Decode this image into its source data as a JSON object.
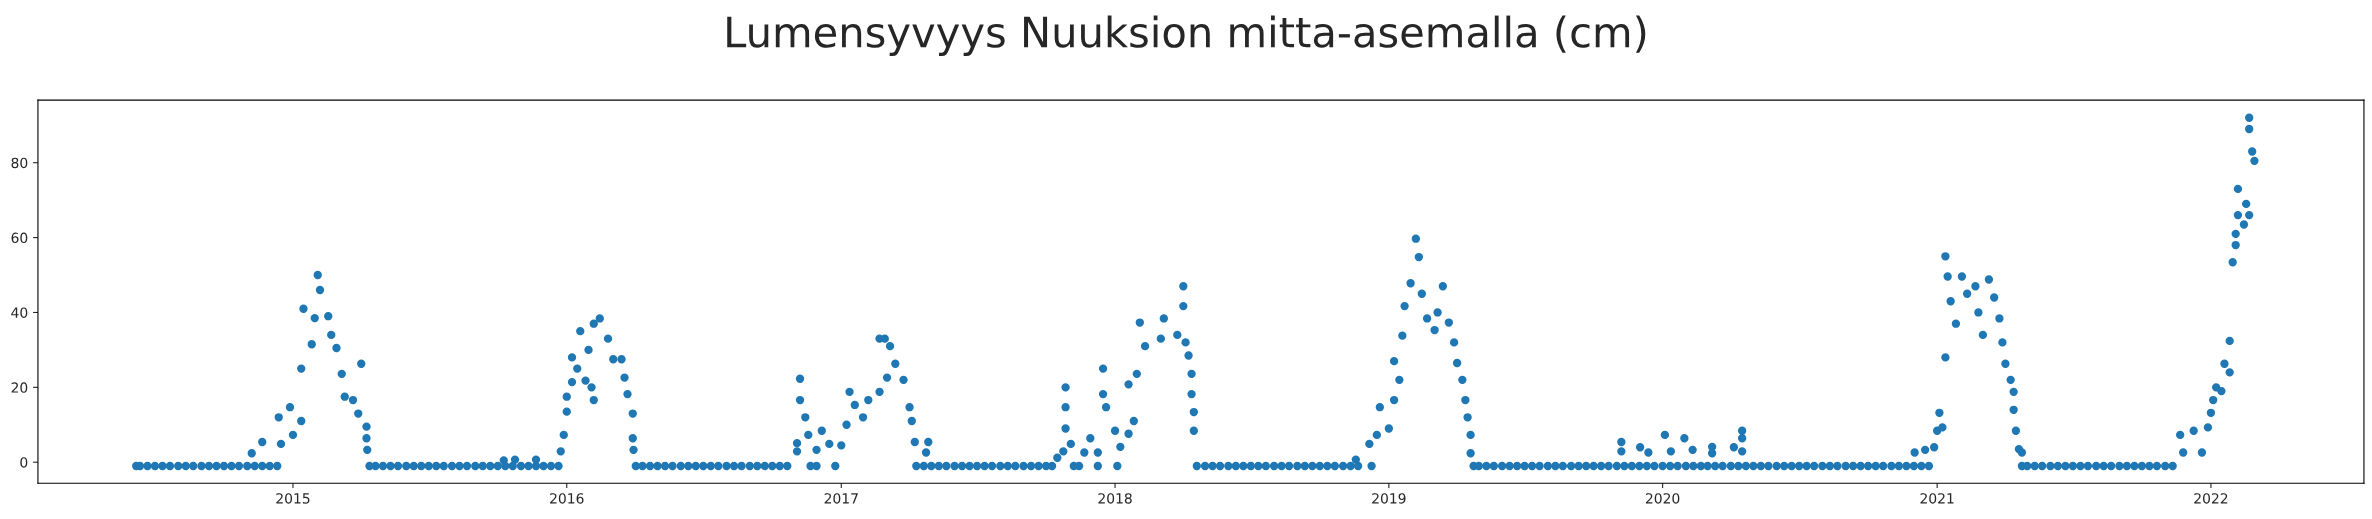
{
  "chart_data": {
    "type": "scatter",
    "title": "Lumensyvyys Nuuksion mitta-asemalla (cm)",
    "xlim": [
      "2014-01-26",
      "2022-07-24"
    ],
    "xticks": [
      "2015",
      "2016",
      "2017",
      "2018",
      "2019",
      "2020",
      "2021",
      "2022"
    ],
    "ylim": [
      -5.6,
      96.7
    ],
    "yticks": [
      0,
      20,
      40,
      60,
      80
    ],
    "grid": false,
    "marker": "circle",
    "series": [
      {
        "color": "#1f77b4",
        "x": [
          "2014-11-07",
          "2014-11-21",
          "2014-12-13",
          "2014-12-16",
          "2014-12-28",
          "2015-01-01",
          "2015-01-12",
          "2015-01-12",
          "2015-01-15",
          "2015-01-26",
          "2015-01-30",
          "2015-02-03",
          "2015-02-06",
          "2015-02-17",
          "2015-02-21",
          "2015-02-28",
          "2015-03-07",
          "2015-03-11",
          "2015-03-22",
          "2015-03-29",
          "2015-04-02",
          "2015-04-09",
          "2015-04-09",
          "2015-04-10",
          "2015-10-09",
          "2015-10-24",
          "2015-11-21",
          "2015-12-24",
          "2015-12-28",
          "2016-01-01",
          "2016-01-01",
          "2016-01-08",
          "2016-01-08",
          "2016-01-19",
          "2016-01-15",
          "2016-01-26",
          "2016-02-03",
          "2016-02-06",
          "2016-01-30",
          "2016-02-06",
          "2016-02-14",
          "2016-02-25",
          "2016-03-03",
          "2016-03-14",
          "2016-03-18",
          "2016-03-22",
          "2016-03-29",
          "2016-03-29",
          "2016-03-30",
          "2016-11-03",
          "2016-11-03",
          "2016-11-07",
          "2016-11-07",
          "2016-11-14",
          "2016-11-18",
          "2016-11-29",
          "2016-12-06",
          "2016-12-16",
          "2017-01-01",
          "2017-01-08",
          "2017-01-12",
          "2017-01-19",
          "2017-01-30",
          "2017-02-06",
          "2017-02-21",
          "2017-02-21",
          "2017-02-28",
          "2017-03-03",
          "2017-03-07",
          "2017-03-14",
          "2017-03-25",
          "2017-04-02",
          "2017-04-05",
          "2017-04-09",
          "2017-04-24",
          "2017-04-27",
          "2017-10-16",
          "2017-10-24",
          "2017-10-27",
          "2017-10-27",
          "2017-10-27",
          "2017-11-03",
          "2017-11-21",
          "2017-11-29",
          "2017-12-09",
          "2017-12-16",
          "2017-12-16",
          "2017-12-20",
          "2018-01-01",
          "2018-01-08",
          "2018-01-19",
          "2018-01-19",
          "2018-01-26",
          "2018-01-30",
          "2018-02-03",
          "2018-02-10",
          "2018-03-07",
          "2018-03-03",
          "2018-03-25",
          "2018-04-02",
          "2018-04-02",
          "2018-04-05",
          "2018-04-09",
          "2018-04-13",
          "2018-04-13",
          "2018-04-16",
          "2018-04-16",
          "2018-11-18",
          "2018-12-06",
          "2018-12-16",
          "2018-12-20",
          "2019-01-01",
          "2019-01-08",
          "2019-01-08",
          "2019-01-15",
          "2019-01-19",
          "2019-01-22",
          "2019-01-30",
          "2019-02-06",
          "2019-02-10",
          "2019-02-14",
          "2019-02-21",
          "2019-03-03",
          "2019-03-07",
          "2019-03-14",
          "2019-03-22",
          "2019-03-29",
          "2019-04-02",
          "2019-04-09",
          "2019-04-13",
          "2019-04-16",
          "2019-04-20",
          "2019-04-20",
          "2019-11-07",
          "2019-11-07",
          "2019-12-02",
          "2019-12-13",
          "2020-01-04",
          "2020-01-12",
          "2020-01-30",
          "2020-02-10",
          "2020-03-07",
          "2020-03-07",
          "2020-04-05",
          "2020-04-16",
          "2020-04-16",
          "2020-04-16",
          "2020-12-02",
          "2020-12-16",
          "2020-12-28",
          "2021-01-01",
          "2021-01-04",
          "2021-01-08",
          "2021-01-12",
          "2021-01-12",
          "2021-01-15",
          "2021-01-19",
          "2021-01-26",
          "2021-02-03",
          "2021-02-10",
          "2021-02-21",
          "2021-02-25",
          "2021-03-03",
          "2021-03-11",
          "2021-03-18",
          "2021-03-25",
          "2021-03-29",
          "2021-04-02",
          "2021-04-09",
          "2021-04-13",
          "2021-04-13",
          "2021-04-16",
          "2021-04-20",
          "2021-04-24",
          "2021-11-21",
          "2021-11-25",
          "2021-12-09",
          "2021-12-20",
          "2021-12-28",
          "2022-01-01",
          "2022-01-04",
          "2022-01-08",
          "2022-01-15",
          "2022-01-19",
          "2022-01-26",
          "2022-01-26",
          "2022-01-30",
          "2022-02-03",
          "2022-02-03",
          "2022-02-06",
          "2022-02-06",
          "2022-02-14",
          "2022-02-17",
          "2022-02-21",
          "2022-02-21",
          "2022-02-21",
          "2022-02-25",
          "2022-02-28"
        ],
        "values": [
          2.4,
          5.4,
          12,
          4.9,
          14.7,
          7.3,
          11,
          25,
          41,
          31.5,
          38.5,
          50,
          46,
          39,
          34,
          30.5,
          23.6,
          17.5,
          16.6,
          13,
          26.3,
          9.5,
          6.4,
          3.3,
          0.5,
          0.7,
          0.7,
          2.9,
          7.3,
          13.5,
          17.5,
          21.4,
          28,
          35,
          25,
          21.8,
          20,
          16.6,
          30,
          37,
          38.4,
          33,
          27.5,
          27.5,
          22.6,
          18.2,
          13,
          6.4,
          3.3,
          2.9,
          5.1,
          22.3,
          16.6,
          12,
          7.3,
          3.3,
          8.4,
          4.9,
          4.5,
          10,
          18.8,
          15.3,
          12,
          16.6,
          18.8,
          33,
          33,
          22.6,
          31,
          26.3,
          22,
          14.7,
          11,
          5.4,
          2.6,
          5.4,
          1.2,
          2.9,
          20,
          14.7,
          9,
          4.9,
          2.6,
          6.4,
          2.6,
          25,
          18.2,
          14.7,
          8.4,
          4.1,
          7.6,
          20.8,
          11,
          23.6,
          37.3,
          31,
          38.4,
          33,
          34,
          47,
          41.7,
          32,
          28.5,
          23.6,
          18.2,
          13.4,
          8.4,
          0.7,
          4.9,
          7.3,
          14.7,
          9,
          16.6,
          27,
          22,
          33.8,
          41.7,
          47.8,
          59.7,
          54.8,
          45,
          38.4,
          35.3,
          40,
          47,
          37.3,
          32,
          26.5,
          22,
          16.6,
          12,
          7.3,
          2.4,
          2.9,
          5.4,
          4,
          2.6,
          7.3,
          2.9,
          6.4,
          3.3,
          4.1,
          2.4,
          4,
          8.4,
          6.4,
          2.9,
          2.6,
          3.3,
          4,
          8.4,
          13.2,
          9.3,
          28,
          55,
          49.6,
          43,
          37,
          49.6,
          45,
          47,
          40,
          34,
          48.8,
          44,
          38.4,
          32,
          26.3,
          22,
          18.8,
          14,
          8.4,
          3.5,
          2.6,
          7.3,
          2.6,
          8.4,
          2.6,
          9.3,
          13.2,
          16.6,
          20,
          19,
          26.3,
          24,
          32.4,
          53.4,
          58,
          61,
          66,
          73,
          63.5,
          69,
          66,
          92,
          89,
          83,
          80.5
        ]
      },
      {
        "color": "#1f77b4",
        "x": [
          "2014-06-06",
          "2014-06-11",
          "2014-06-21",
          "2014-07-01",
          "2014-07-11",
          "2014-07-21",
          "2014-08-01",
          "2014-08-11",
          "2014-08-21",
          "2014-09-01",
          "2014-09-11",
          "2014-09-21",
          "2014-10-01",
          "2014-10-11",
          "2014-10-21",
          "2014-11-01",
          "2014-11-11",
          "2014-11-21",
          "2014-12-01",
          "2014-12-11",
          "2015-04-13",
          "2015-04-21",
          "2015-05-01",
          "2015-05-11",
          "2015-05-21",
          "2015-06-01",
          "2015-06-11",
          "2015-06-21",
          "2015-07-01",
          "2015-07-11",
          "2015-07-21",
          "2015-08-01",
          "2015-08-11",
          "2015-08-21",
          "2015-09-01",
          "2015-09-11",
          "2015-09-21",
          "2015-10-01",
          "2015-10-11",
          "2015-10-21",
          "2015-11-01",
          "2015-11-11",
          "2015-11-21",
          "2015-12-01",
          "2015-12-11",
          "2015-12-21",
          "2016-04-02",
          "2016-04-11",
          "2016-04-21",
          "2016-05-01",
          "2016-05-11",
          "2016-05-21",
          "2016-06-01",
          "2016-06-11",
          "2016-06-21",
          "2016-07-01",
          "2016-07-11",
          "2016-07-21",
          "2016-08-01",
          "2016-08-11",
          "2016-08-21",
          "2016-09-01",
          "2016-09-11",
          "2016-09-21",
          "2016-10-01",
          "2016-10-11",
          "2016-10-21",
          "2016-11-21",
          "2016-11-29",
          "2016-12-24",
          "2017-04-11",
          "2017-04-21",
          "2017-05-01",
          "2017-05-11",
          "2017-05-21",
          "2017-06-01",
          "2017-06-11",
          "2017-06-21",
          "2017-07-01",
          "2017-07-11",
          "2017-07-21",
          "2017-08-01",
          "2017-08-11",
          "2017-08-21",
          "2017-09-01",
          "2017-09-11",
          "2017-09-21",
          "2017-10-01",
          "2017-10-09",
          "2017-11-07",
          "2017-11-14",
          "2017-12-09",
          "2018-01-04",
          "2018-04-20",
          "2018-05-01",
          "2018-05-11",
          "2018-05-21",
          "2018-06-01",
          "2018-06-11",
          "2018-06-21",
          "2018-07-01",
          "2018-07-11",
          "2018-07-21",
          "2018-08-01",
          "2018-08-11",
          "2018-08-21",
          "2018-09-01",
          "2018-09-11",
          "2018-09-21",
          "2018-10-01",
          "2018-10-11",
          "2018-10-21",
          "2018-11-01",
          "2018-11-11",
          "2018-11-21",
          "2018-12-09",
          "2019-04-24",
          "2019-05-01",
          "2019-05-11",
          "2019-05-21",
          "2019-06-01",
          "2019-06-11",
          "2019-06-21",
          "2019-07-01",
          "2019-07-11",
          "2019-07-21",
          "2019-08-01",
          "2019-08-11",
          "2019-08-21",
          "2019-09-01",
          "2019-09-11",
          "2019-09-21",
          "2019-10-01",
          "2019-10-11",
          "2019-10-21",
          "2019-11-01",
          "2019-11-11",
          "2019-11-21",
          "2019-12-01",
          "2019-12-11",
          "2019-12-21",
          "2020-01-01",
          "2020-01-11",
          "2020-01-21",
          "2020-02-01",
          "2020-02-11",
          "2020-02-21",
          "2020-03-01",
          "2020-03-11",
          "2020-03-21",
          "2020-04-01",
          "2020-04-11",
          "2020-04-21",
          "2020-05-01",
          "2020-05-11",
          "2020-05-21",
          "2020-06-01",
          "2020-06-11",
          "2020-06-21",
          "2020-07-01",
          "2020-07-11",
          "2020-07-21",
          "2020-08-01",
          "2020-08-11",
          "2020-08-21",
          "2020-09-01",
          "2020-09-11",
          "2020-09-21",
          "2020-10-01",
          "2020-10-11",
          "2020-10-21",
          "2020-11-01",
          "2020-11-11",
          "2020-11-21",
          "2020-12-01",
          "2020-12-11",
          "2020-12-21",
          "2021-04-24",
          "2021-05-01",
          "2021-05-11",
          "2021-05-21",
          "2021-06-01",
          "2021-06-11",
          "2021-06-21",
          "2021-07-01",
          "2021-07-11",
          "2021-07-21",
          "2021-08-01",
          "2021-08-11",
          "2021-08-21",
          "2021-09-01",
          "2021-09-11",
          "2021-09-21",
          "2021-10-01",
          "2021-10-11",
          "2021-10-21",
          "2021-11-01",
          "2021-11-11"
        ],
        "values": [
          -1,
          -1,
          -1,
          -1,
          -1,
          -1,
          -1,
          -1,
          -1,
          -1,
          -1,
          -1,
          -1,
          -1,
          -1,
          -1,
          -1,
          -1,
          -1,
          -1,
          -1,
          -1,
          -1,
          -1,
          -1,
          -1,
          -1,
          -1,
          -1,
          -1,
          -1,
          -1,
          -1,
          -1,
          -1,
          -1,
          -1,
          -1,
          -1,
          -1,
          -1,
          -1,
          -1,
          -1,
          -1,
          -1,
          -1,
          -1,
          -1,
          -1,
          -1,
          -1,
          -1,
          -1,
          -1,
          -1,
          -1,
          -1,
          -1,
          -1,
          -1,
          -1,
          -1,
          -1,
          -1,
          -1,
          -1,
          -1,
          -1,
          -1,
          -1,
          -1,
          -1,
          -1,
          -1,
          -1,
          -1,
          -1,
          -1,
          -1,
          -1,
          -1,
          -1,
          -1,
          -1,
          -1,
          -1,
          -1,
          -1,
          -1,
          -1,
          -1,
          -1,
          -1,
          -1,
          -1,
          -1,
          -1,
          -1,
          -1,
          -1,
          -1,
          -1,
          -1,
          -1,
          -1,
          -1,
          -1,
          -1,
          -1,
          -1,
          -1,
          -1,
          -1,
          -1,
          -1,
          -1,
          -1,
          -1,
          -1,
          -1,
          -1,
          -1,
          -1,
          -1,
          -1,
          -1,
          -1,
          -1,
          -1,
          -1,
          -1,
          -1,
          -1,
          -1,
          -1,
          -1,
          -1,
          -1,
          -1,
          -1,
          -1,
          -1,
          -1,
          -1,
          -1,
          -1,
          -1,
          -1,
          -1,
          -1,
          -1,
          -1,
          -1,
          -1,
          -1,
          -1,
          -1,
          -1,
          -1,
          -1,
          -1,
          -1,
          -1,
          -1,
          -1,
          -1,
          -1,
          -1,
          -1,
          -1,
          -1,
          -1,
          -1,
          -1,
          -1,
          -1,
          -1,
          -1,
          -1,
          -1,
          -1,
          -1,
          -1,
          -1,
          -1,
          -1,
          -1,
          -1,
          -1,
          -1,
          -1,
          -1,
          -1,
          -1,
          -1,
          -1,
          -1
        ]
      }
    ]
  }
}
